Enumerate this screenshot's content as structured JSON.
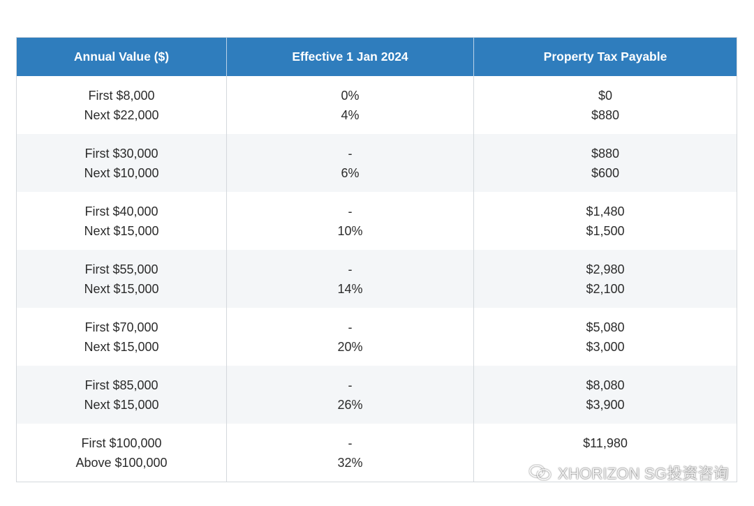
{
  "table": {
    "headers": [
      "Annual Value ($)",
      "Effective 1 Jan 2024",
      "Property Tax Payable"
    ],
    "rows": [
      {
        "annual_value": [
          "First $8,000",
          "Next $22,000"
        ],
        "rate": [
          "0%",
          "4%"
        ],
        "tax": [
          "$0",
          "$880"
        ]
      },
      {
        "annual_value": [
          "First $30,000",
          "Next $10,000"
        ],
        "rate": [
          "-",
          "6%"
        ],
        "tax": [
          "$880",
          "$600"
        ]
      },
      {
        "annual_value": [
          "First $40,000",
          "Next $15,000"
        ],
        "rate": [
          "-",
          "10%"
        ],
        "tax": [
          "$1,480",
          "$1,500"
        ]
      },
      {
        "annual_value": [
          "First $55,000",
          "Next $15,000"
        ],
        "rate": [
          "-",
          "14%"
        ],
        "tax": [
          "$2,980",
          "$2,100"
        ]
      },
      {
        "annual_value": [
          "First $70,000",
          "Next $15,000"
        ],
        "rate": [
          "-",
          "20%"
        ],
        "tax": [
          "$5,080",
          "$3,000"
        ]
      },
      {
        "annual_value": [
          "First $85,000",
          "Next $15,000"
        ],
        "rate": [
          "-",
          "26%"
        ],
        "tax": [
          "$8,080",
          "$3,900"
        ]
      },
      {
        "annual_value": [
          "First $100,000",
          "Above $100,000"
        ],
        "rate": [
          "-",
          "32%"
        ],
        "tax": [
          "$11,980",
          ""
        ]
      }
    ]
  },
  "watermark": {
    "text": "XHORIZON SG投资咨询",
    "icon": "wechat-icon"
  },
  "colors": {
    "header_bg": "#2f7dbd",
    "header_text": "#ffffff",
    "row_alt_bg": "#f4f6f8",
    "border": "#d4d8dc"
  }
}
